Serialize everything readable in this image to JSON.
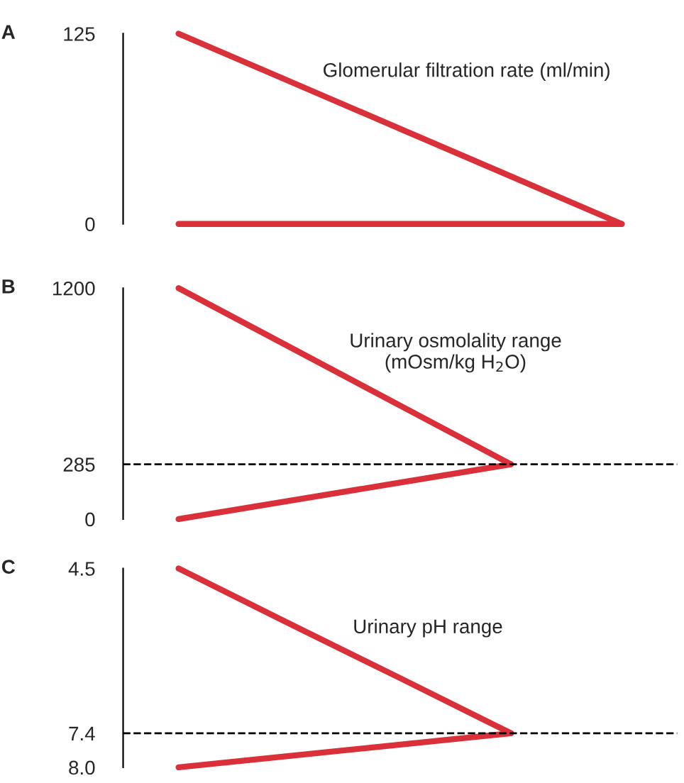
{
  "chart_data": [
    {
      "type": "line",
      "title": "A",
      "annotations": [
        "Glomerular filtration rate (ml/min)"
      ],
      "categories": [
        null,
        null,
        null,
        null,
        null
      ],
      "ylim": [
        0,
        125
      ],
      "yticks": [
        0,
        125
      ],
      "tick_labels": "y",
      "series": [
        {
          "color": "#d9303a",
          "values": [
            125,
            93.75,
            62.5,
            31.25,
            0
          ]
        },
        {
          "color": "#d9303a",
          "values": [
            0,
            0,
            0,
            0,
            0
          ]
        }
      ]
    },
    {
      "type": "line",
      "title": "B",
      "annotations": [
        "Urinary osmolality range\n(mOsm/kg H$_{2}$O)"
      ],
      "categories": [
        null,
        null,
        null,
        null,
        null
      ],
      "ylim": [
        0,
        1200
      ],
      "yticks": [
        0,
        285,
        1200
      ],
      "tick_labels": "y",
      "series": [
        {
          "color": "#d9303a",
          "values": [
            1200,
            895,
            590,
            285,
            null
          ]
        },
        {
          "color": "#d9303a",
          "values": [
            0,
            95,
            190,
            285,
            null
          ]
        }
      ],
      "ref_lines": [
        {
          "axis": "y",
          "value": 285,
          "line_style": "dashed",
          "color": "#000000"
        }
      ]
    },
    {
      "type": "line",
      "title": "C",
      "annotations": [
        "Urinary pH range"
      ],
      "categories": [
        null,
        null,
        null,
        null,
        null
      ],
      "ylim": [
        8.0,
        4.5
      ],
      "yticks": [
        4.5,
        7.4,
        {
          "value": 8,
          "label": "8.0"
        }
      ],
      "tick_labels": "y",
      "series": [
        {
          "color": "#d9303a",
          "values": [
            4.5,
            5.47,
            6.43,
            7.4,
            null
          ]
        },
        {
          "color": "#d9303a",
          "values": [
            8.0,
            7.8,
            7.6,
            7.4,
            null
          ]
        }
      ],
      "ref_lines": [
        {
          "axis": "y",
          "value": 7.4,
          "line_style": "dashed",
          "color": "#000000"
        }
      ]
    }
  ]
}
